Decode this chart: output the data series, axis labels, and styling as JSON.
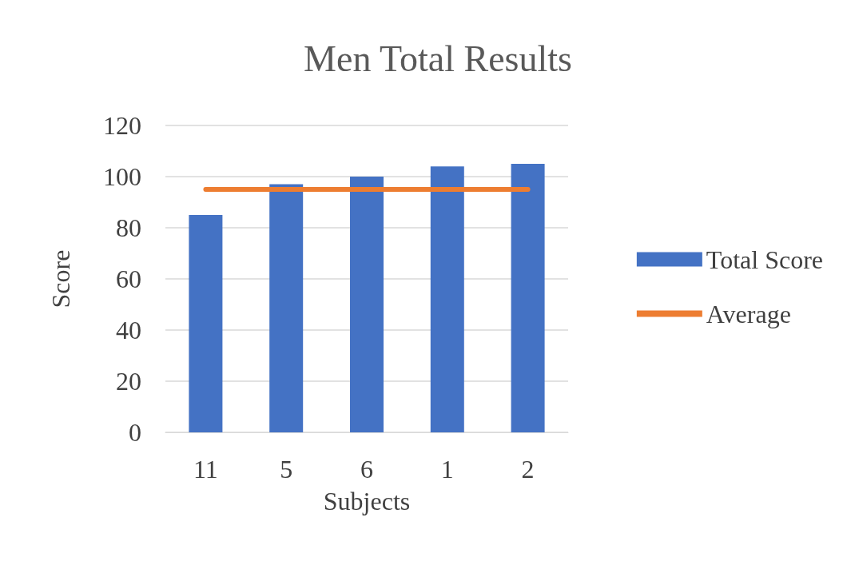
{
  "chart_data": {
    "type": "bar",
    "title": "Men Total Results",
    "xlabel": "Subjects",
    "ylabel": "Score",
    "categories": [
      "11",
      "5",
      "6",
      "1",
      "2"
    ],
    "series": [
      {
        "name": "Total Score",
        "color": "#4472c4",
        "values": [
          85,
          97,
          100,
          104,
          105
        ]
      },
      {
        "name": "Average",
        "type": "line",
        "color": "#ed7d31",
        "values": [
          95,
          95,
          95,
          95,
          95
        ]
      }
    ],
    "ylim": [
      0,
      120
    ],
    "yticks": [
      0,
      20,
      40,
      60,
      80,
      100,
      120
    ],
    "grid": "y",
    "legend": "right",
    "marker": "none"
  }
}
